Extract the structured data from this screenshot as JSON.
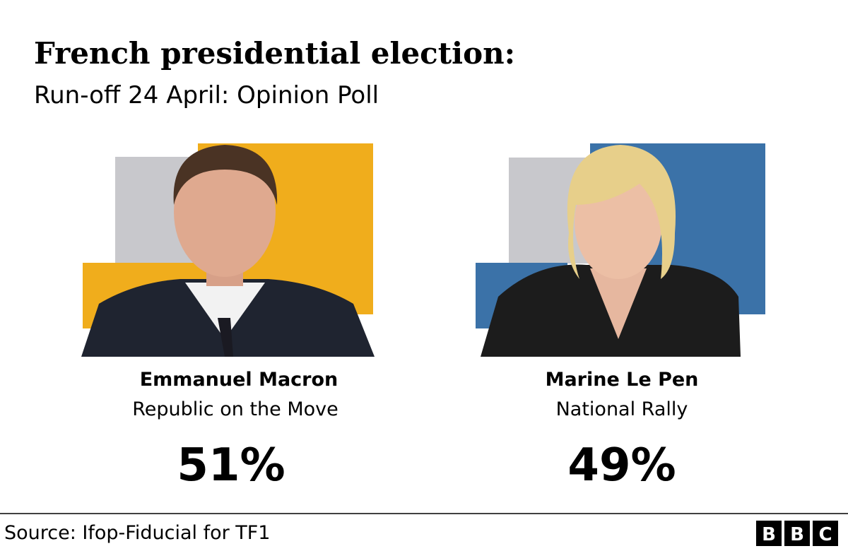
{
  "header": {
    "title": "French presidential election:",
    "subtitle": "Run-off 24 April: Opinion Poll"
  },
  "candidates": [
    {
      "name": "Emmanuel Macron",
      "party": "Republic on the Move",
      "share": "51%"
    },
    {
      "name": "Marine Le Pen",
      "party": "National Rally",
      "share": "49%"
    }
  ],
  "footer": {
    "source": "Source: Ifop-Fiducial for TF1",
    "logo": [
      "B",
      "B",
      "C"
    ]
  }
}
